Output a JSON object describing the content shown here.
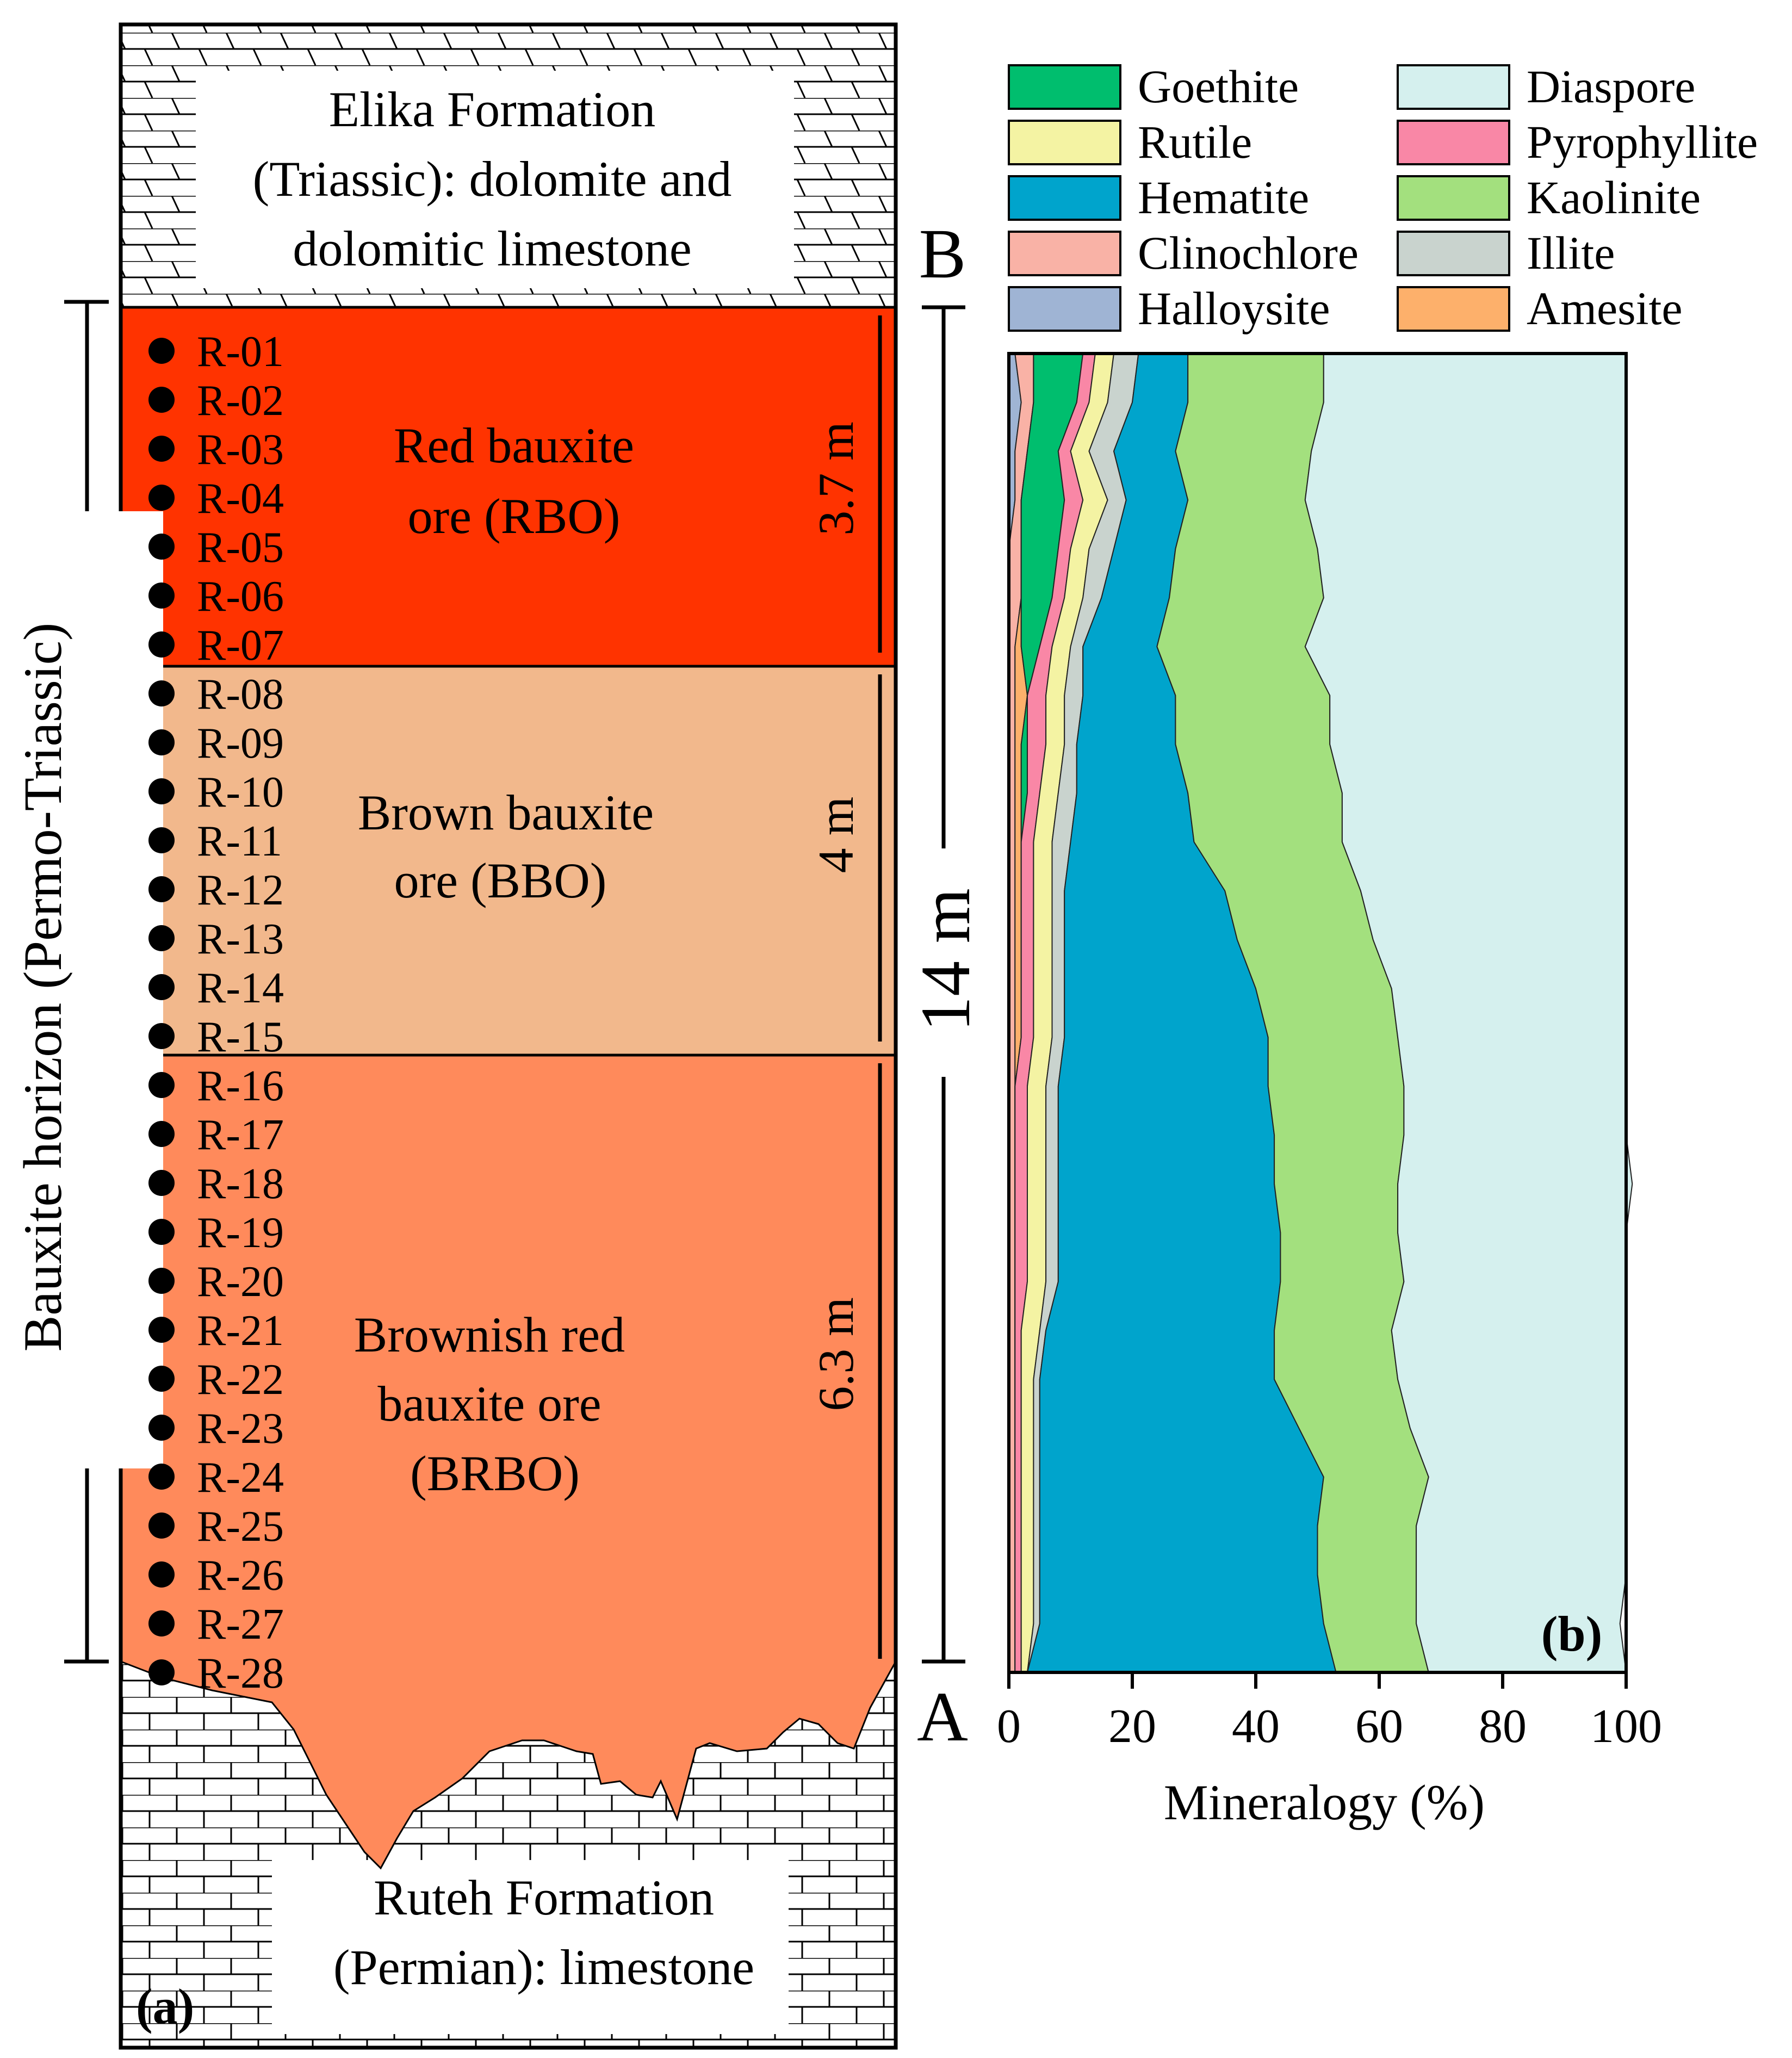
{
  "panel_a": {
    "panel_label": "(a)",
    "top_formation": {
      "line1": "Elika Formation",
      "line2": "(Triassic): dolomite and",
      "line3": "dolomitic limestone"
    },
    "bottom_formation": {
      "line1": "Ruteh Formation",
      "line2": "(Permian): limestone"
    },
    "horizon_label": "Bauxite horizon (Permo-Triassic)",
    "total_thickness": "14 m",
    "marker_top": "B",
    "marker_bottom": "A",
    "units": [
      {
        "line1": "Red bauxite",
        "line2": "ore (RBO)",
        "line3": "",
        "thickness": "3.7 m",
        "color": "#FF3300"
      },
      {
        "line1": "Brown bauxite",
        "line2": "ore (BBO)",
        "line3": "",
        "thickness": "4 m",
        "color": "#F2B88C"
      },
      {
        "line1": "Brownish red",
        "line2": "bauxite ore",
        "line3": "(BRBO)",
        "thickness": "6.3 m",
        "color": "#FF8A5B"
      }
    ],
    "samples": [
      "R-01",
      "R-02",
      "R-03",
      "R-04",
      "R-05",
      "R-06",
      "R-07",
      "R-08",
      "R-09",
      "R-10",
      "R-11",
      "R-12",
      "R-13",
      "R-14",
      "R-15",
      "R-16",
      "R-17",
      "R-18",
      "R-19",
      "R-20",
      "R-21",
      "R-22",
      "R-23",
      "R-24",
      "R-25",
      "R-26",
      "R-27",
      "R-28"
    ],
    "colors": {
      "pattern_bg": "#ffffff",
      "pattern_line": "#000000"
    }
  },
  "chart_data": {
    "type": "area",
    "orientation": "horizontal-stacked",
    "panel_label": "(b)",
    "xlabel": "Mineralogy (%)",
    "xlim": [
      0,
      100
    ],
    "xticks": [
      "0",
      "20",
      "40",
      "60",
      "80",
      "100"
    ],
    "samples": [
      "R-01",
      "R-02",
      "R-03",
      "R-04",
      "R-05",
      "R-06",
      "R-07",
      "R-08",
      "R-09",
      "R-10",
      "R-11",
      "R-12",
      "R-13",
      "R-14",
      "R-15",
      "R-16",
      "R-17",
      "R-18",
      "R-19",
      "R-20",
      "R-21",
      "R-22",
      "R-23",
      "R-24",
      "R-25",
      "R-26",
      "R-27",
      "R-28"
    ],
    "legend": {
      "columns": [
        [
          "Goethite",
          "Rutile",
          "Hematite",
          "Clinochlore",
          "Halloysite"
        ],
        [
          "Diaspore",
          "Pyrophyllite",
          "Kaolinite",
          "Illite",
          "Amesite"
        ]
      ]
    },
    "series": [
      {
        "name": "Halloysite",
        "color": "#9FB4D4",
        "values": [
          1,
          2,
          1,
          1,
          0,
          0,
          0,
          0,
          0,
          0,
          0,
          0,
          0,
          0,
          0,
          0,
          0,
          0,
          0,
          0,
          0,
          0,
          0,
          0,
          0,
          0,
          0,
          0
        ]
      },
      {
        "name": "Clinochlore",
        "color": "#F9B2A6",
        "values": [
          3,
          2,
          2,
          1,
          2,
          2,
          1,
          1,
          1,
          1,
          1,
          1,
          1,
          1,
          1,
          1,
          1,
          1,
          1,
          1,
          1,
          1,
          1,
          1,
          1,
          1,
          1,
          1
        ]
      },
      {
        "name": "Amesite",
        "color": "#FDB06B",
        "values": [
          0,
          0,
          0,
          0,
          0,
          0,
          1,
          2,
          1,
          1,
          1,
          1,
          1,
          1,
          1,
          0,
          0,
          0,
          0,
          0,
          0,
          0,
          0,
          0,
          0,
          0,
          0,
          0
        ]
      },
      {
        "name": "Goethite",
        "color": "#00BE6E",
        "values": [
          8,
          7,
          5,
          7,
          6,
          5,
          3,
          0,
          1,
          1,
          0,
          0,
          0,
          0,
          0,
          0,
          0,
          0,
          0,
          0,
          0,
          0,
          0,
          0,
          0,
          0,
          0,
          0
        ]
      },
      {
        "name": "Pyrophyllite",
        "color": "#F987A6",
        "values": [
          2,
          2,
          2,
          3,
          2,
          2,
          2,
          3,
          3,
          2,
          2,
          2,
          2,
          2,
          2,
          2,
          2,
          2,
          2,
          2,
          1,
          1,
          1,
          1,
          1,
          1,
          1,
          1
        ]
      },
      {
        "name": "Rutile",
        "color": "#F4F3A3",
        "values": [
          3,
          3,
          3,
          4,
          3,
          3,
          3,
          3,
          3,
          3,
          3,
          3,
          3,
          3,
          3,
          3,
          3,
          3,
          3,
          3,
          3,
          2,
          2,
          2,
          2,
          2,
          2,
          1
        ]
      },
      {
        "name": "Illite",
        "color": "#C9D3CE",
        "values": [
          4,
          4,
          4,
          3,
          4,
          3,
          2,
          3,
          2,
          3,
          3,
          2,
          2,
          2,
          2,
          2,
          2,
          2,
          2,
          2,
          1,
          1,
          1,
          1,
          1,
          1,
          1,
          0
        ]
      },
      {
        "name": "Hematite",
        "color": "#00A4CC",
        "values": [
          8,
          9,
          10,
          10,
          10,
          11,
          12,
          15,
          16,
          18,
          20,
          26,
          28,
          31,
          33,
          34,
          35,
          35,
          36,
          36,
          37,
          38,
          42,
          46,
          45,
          45,
          46,
          50
        ]
      },
      {
        "name": "Kaolinite",
        "color": "#A3E07E",
        "values": [
          22,
          22,
          22,
          19,
          23,
          25,
          24,
          25,
          25,
          25,
          24,
          22,
          22,
          22,
          21,
          22,
          21,
          20,
          19,
          20,
          19,
          20,
          18,
          17,
          16,
          16,
          15,
          15
        ]
      },
      {
        "name": "Diaspore",
        "color": "#D5F0EE",
        "values": [
          49,
          49,
          51,
          52,
          50,
          49,
          52,
          48,
          48,
          46,
          46,
          43,
          41,
          38,
          37,
          36,
          36,
          38,
          37,
          36,
          38,
          37,
          35,
          32,
          34,
          34,
          33,
          32
        ]
      }
    ]
  }
}
